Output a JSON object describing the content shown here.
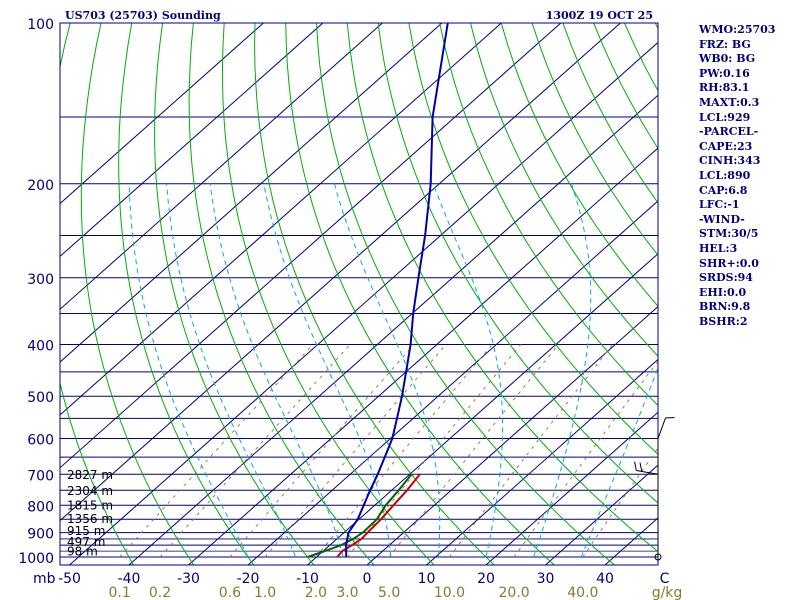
{
  "header": {
    "station_label": "US703 (25703) Sounding",
    "time_label": "1300Z 19 OCT 25"
  },
  "colors": {
    "frame": "#000080",
    "isobar": "#000080",
    "isotherm": "#000080",
    "dry_adiabat": "#00b000",
    "moist_adiabat": "#00b0d0",
    "mixing_ratio": "#9a7b4f",
    "temperature": "#cc0000",
    "dewpoint": "#006600",
    "parcel": "#0000aa",
    "axis_text": "#000080",
    "mixing_text": "#8b7a2a"
  },
  "chart_data": {
    "type": "line",
    "title": "US703 (25703) Sounding",
    "y_scale": "log-pressure",
    "ylim": [
      1000,
      100
    ],
    "xlim": [
      -50,
      50
    ],
    "pressure_ticks": [
      100,
      200,
      300,
      400,
      500,
      600,
      700,
      800,
      900,
      1000
    ],
    "pressure_tick_labels": [
      "100",
      "200",
      "300",
      "400",
      "500",
      "600",
      "700",
      "800",
      "900",
      "1000"
    ],
    "pressure_axis_label": "mb",
    "temperature_ticks": [
      -50,
      -40,
      -30,
      -20,
      -10,
      0,
      10,
      20,
      30,
      40,
      50
    ],
    "temperature_tick_labels": [
      "-50",
      "-40",
      "-30",
      "-20",
      "-10",
      "0",
      "10",
      "20",
      "30",
      "40",
      "C"
    ],
    "mixing_ratio_ticks": [
      0.1,
      0.2,
      0.6,
      1.0,
      2.0,
      3.0,
      5.0,
      10.0,
      20.0,
      40.0
    ],
    "mixing_ratio_labels": [
      "0.1",
      "0.2",
      "0.6",
      "1.0",
      "2.0",
      "3.0",
      "5.0",
      "10.0",
      "20.0",
      "40.0"
    ],
    "mixing_ratio_unit": "g/kg",
    "height_labels": [
      {
        "p": 720,
        "text": "2827 m"
      },
      {
        "p": 772,
        "text": "2304 m"
      },
      {
        "p": 821,
        "text": "1815 m"
      },
      {
        "p": 871,
        "text": "1356 m"
      },
      {
        "p": 917,
        "text": "915 m"
      },
      {
        "p": 961,
        "text": "497 m"
      },
      {
        "p": 1003,
        "text": "98 m"
      }
    ],
    "series": [
      {
        "key": "temperature",
        "points": [
          [
            1000,
            -5
          ],
          [
            975,
            -5.3
          ],
          [
            950,
            -4.8
          ],
          [
            925,
            -4.4
          ],
          [
            900,
            -4.6
          ],
          [
            850,
            -4.9
          ],
          [
            800,
            -5.5
          ],
          [
            750,
            -6.1
          ],
          [
            700,
            -7.0
          ]
        ]
      },
      {
        "key": "dewpoint",
        "points": [
          [
            1000,
            -10
          ],
          [
            975,
            -8.2
          ],
          [
            950,
            -6.6
          ],
          [
            925,
            -5.8
          ],
          [
            900,
            -5.4
          ],
          [
            850,
            -5.6
          ],
          [
            800,
            -6.8
          ],
          [
            750,
            -7.5
          ],
          [
            700,
            -8.4
          ]
        ]
      },
      {
        "key": "parcel",
        "points": [
          [
            1000,
            -3.5
          ],
          [
            950,
            -5.8
          ],
          [
            900,
            -7.8
          ],
          [
            850,
            -8.8
          ],
          [
            800,
            -10.5
          ],
          [
            750,
            -12.3
          ],
          [
            700,
            -14.1
          ],
          [
            650,
            -16.2
          ],
          [
            600,
            -18.5
          ],
          [
            550,
            -21.6
          ],
          [
            500,
            -25.0
          ],
          [
            450,
            -29.0
          ],
          [
            400,
            -33.5
          ],
          [
            350,
            -39.0
          ],
          [
            300,
            -45.0
          ],
          [
            250,
            -52.0
          ],
          [
            200,
            -61.0
          ],
          [
            150,
            -73.5
          ],
          [
            100,
            -89.0
          ]
        ]
      }
    ],
    "wind_barbs": [
      {
        "p": 1000,
        "dir": 0,
        "spd": 0
      },
      {
        "p": 700,
        "dir": 280,
        "spd": 20
      },
      {
        "p": 600,
        "dir": 20,
        "spd": 10
      }
    ]
  },
  "sidebar": {
    "lines": [
      "WMO:25703",
      "FRZ: BG",
      "WB0: BG",
      "PW:0.16",
      "RH:83.1",
      "MAXT:0.3",
      "LCL:929",
      "-PARCEL-",
      "CAPE:23",
      "CINH:343",
      "LCL:890",
      "CAP:6.8",
      "LFC:-1",
      "-WIND-",
      "STM:30/5",
      "HEL:3",
      "SHR+:0.0",
      "SRDS:94",
      "EHI:0.0",
      "BRN:9.8",
      "BSHR:2"
    ]
  }
}
